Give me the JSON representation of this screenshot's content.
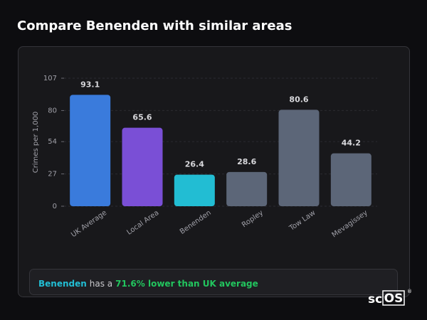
{
  "header": {
    "title": "Compare Benenden with similar areas"
  },
  "chart_data": {
    "type": "bar",
    "y_label": "Crimes per 1,000",
    "categories": [
      "UK Average",
      "Local Area",
      "Benenden",
      "Ropley",
      "Tow Law",
      "Mevagissey"
    ],
    "values": [
      93.1,
      65.6,
      26.4,
      28.6,
      80.6,
      44.2
    ],
    "colors": [
      "#3a7bdc",
      "#7a4fd6",
      "#22bdd3",
      "#5c6678",
      "#5c6678",
      "#5c6678"
    ],
    "ylim": [
      0,
      107
    ],
    "yticks": [
      0,
      27,
      54,
      80,
      107
    ],
    "grid": true
  },
  "summary": {
    "area": "Benenden",
    "text": "has a",
    "comparison": "71.6% lower than UK average"
  },
  "logo": {
    "text": "sc",
    "boxed": "OS",
    "mark": "®"
  }
}
